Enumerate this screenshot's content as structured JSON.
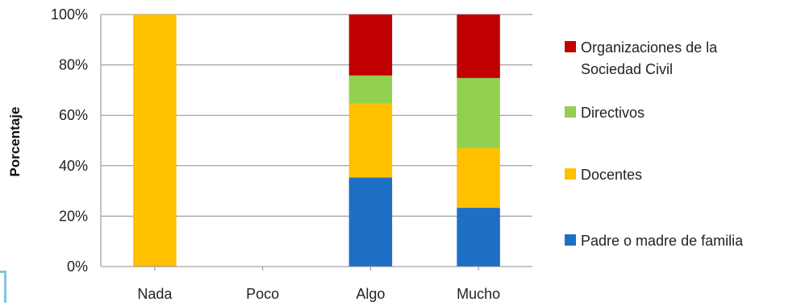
{
  "chart_data": {
    "type": "bar",
    "stacked": true,
    "normalized": true,
    "categories": [
      "Nada",
      "Poco",
      "Algo",
      "Mucho"
    ],
    "series": [
      {
        "name": "Padre o madre de familia",
        "color": "#1f6fc6",
        "values": [
          0,
          0,
          35.3,
          23.3
        ]
      },
      {
        "name": "Docentes",
        "color": "#ffc000",
        "values": [
          100,
          0,
          29.4,
          23.7
        ]
      },
      {
        "name": "Directivos",
        "color": "#92d050",
        "values": [
          0,
          0,
          11.1,
          27.8
        ]
      },
      {
        "name": "Organizaciones de la Sociedad Civil",
        "color": "#c00000",
        "values": [
          0,
          0,
          24.2,
          25.2
        ]
      }
    ],
    "ylabel": "Porcentaje",
    "xlabel": "",
    "ylim": [
      0,
      100
    ],
    "yticks": [
      "0%",
      "20%",
      "40%",
      "60%",
      "80%",
      "100%"
    ],
    "grid": true,
    "legend_position": "right"
  }
}
